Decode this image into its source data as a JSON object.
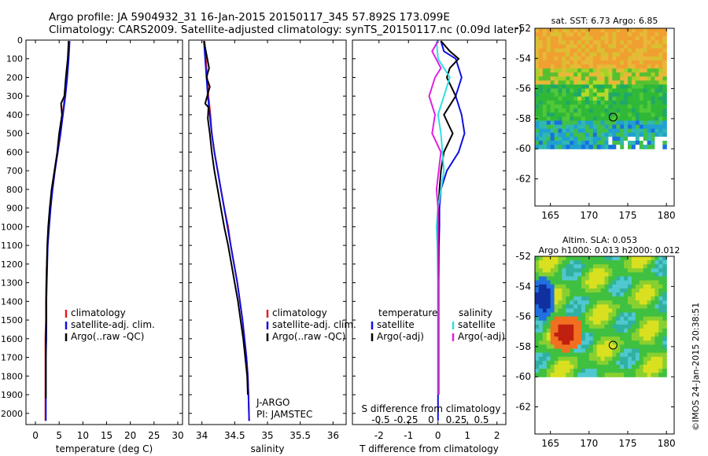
{
  "header": {
    "line1": "Argo profile: JA 5904932_31 16-Jan-2015 20150117_345 57.892S 173.099E",
    "line2": "Climatology: CARS2009. Satellite-adjusted climatology: synTS_20150117.nc (0.09d later)"
  },
  "colors": {
    "climatology": "#e02020",
    "satellite": "#1010e0",
    "argo": "#000000",
    "satellite_sal": "#30e0e0",
    "argo_sal": "#e020e0"
  },
  "chart_data": [
    {
      "type": "line",
      "name": "temperature-panel",
      "xlabel": "temperature (deg C)",
      "xlim": [
        -2,
        31
      ],
      "xticks": [
        0,
        5,
        10,
        15,
        20,
        25,
        30
      ],
      "ylim": [
        0,
        2060
      ],
      "yticks": [
        0,
        100,
        200,
        300,
        400,
        500,
        600,
        700,
        800,
        900,
        1000,
        1100,
        1200,
        1300,
        1400,
        1500,
        1600,
        1700,
        1800,
        1900,
        2000
      ],
      "legend": [
        "climatology",
        "satellite-adj. clim.",
        "Argo(..raw -QC)"
      ],
      "series": [
        {
          "name": "climatology",
          "x": [
            7.0,
            6.9,
            6.6,
            6.2,
            5.7,
            5.3,
            4.7,
            4.1,
            3.6,
            3.1,
            2.8,
            2.6,
            2.4,
            2.3,
            2.2,
            2.2,
            2.1,
            2.1,
            2.1,
            2.1,
            2.1
          ],
          "y": [
            5,
            100,
            200,
            300,
            400,
            500,
            600,
            700,
            800,
            900,
            1000,
            1100,
            1200,
            1300,
            1400,
            1500,
            1600,
            1700,
            1800,
            1900,
            2040
          ]
        },
        {
          "name": "satellite-adj. clim.",
          "x": [
            7.2,
            7.0,
            6.7,
            6.3,
            5.8,
            5.3,
            4.7,
            4.1,
            3.6,
            3.2,
            2.9,
            2.6,
            2.5,
            2.4,
            2.3,
            2.3,
            2.3,
            2.2,
            2.2,
            2.2,
            2.2
          ],
          "y": [
            5,
            100,
            200,
            300,
            400,
            500,
            600,
            700,
            800,
            900,
            1000,
            1100,
            1200,
            1300,
            1400,
            1500,
            1600,
            1700,
            1800,
            1900,
            2040
          ]
        },
        {
          "name": "Argo(..raw -QC)",
          "x": [
            7.0,
            6.8,
            6.4,
            6.1,
            5.4,
            5.6,
            5.0,
            4.6,
            4.0,
            3.4,
            3.0,
            2.7,
            2.5,
            2.4,
            2.3,
            2.3,
            2.3,
            2.2,
            2.2,
            2.2,
            2.2
          ],
          "y": [
            5,
            100,
            200,
            300,
            340,
            400,
            500,
            600,
            700,
            800,
            900,
            1000,
            1100,
            1200,
            1300,
            1400,
            1500,
            1600,
            1700,
            1800,
            1920
          ]
        }
      ]
    },
    {
      "type": "line",
      "name": "salinity-panel",
      "xlabel": "salinity",
      "xlim": [
        33.8,
        36.2
      ],
      "xticks": [
        34,
        34.5,
        35,
        35.5,
        36
      ],
      "ylim": [
        0,
        2060
      ],
      "legend": [
        "climatology",
        "satellite-adj. clim.",
        "Argo(..raw -QC)"
      ],
      "annotation": [
        "J-ARGO",
        "PI: JAMSTEC"
      ],
      "series": [
        {
          "name": "climatology",
          "x": [
            34.04,
            34.06,
            34.08,
            34.1,
            34.13,
            34.15,
            34.19,
            34.24,
            34.29,
            34.34,
            34.4,
            34.44,
            34.49,
            34.54,
            34.58,
            34.62,
            34.65,
            34.68,
            34.7,
            34.71,
            34.72
          ],
          "y": [
            5,
            100,
            200,
            300,
            400,
            500,
            600,
            700,
            800,
            900,
            1000,
            1100,
            1200,
            1300,
            1400,
            1500,
            1600,
            1700,
            1800,
            1900,
            2040
          ]
        },
        {
          "name": "satellite-adj. clim.",
          "x": [
            34.03,
            34.05,
            34.07,
            34.09,
            34.12,
            34.15,
            34.19,
            34.24,
            34.29,
            34.34,
            34.39,
            34.44,
            34.49,
            34.54,
            34.58,
            34.62,
            34.65,
            34.68,
            34.7,
            34.71,
            34.72
          ],
          "y": [
            5,
            100,
            200,
            300,
            400,
            500,
            600,
            700,
            800,
            900,
            1000,
            1100,
            1200,
            1300,
            1400,
            1500,
            1600,
            1700,
            1800,
            1900,
            2040
          ]
        },
        {
          "name": "Argo(..raw -QC)",
          "x": [
            34.03,
            34.06,
            34.11,
            34.07,
            34.12,
            34.05,
            34.1,
            34.09,
            34.12,
            34.15,
            34.19,
            34.24,
            34.29,
            34.34,
            34.4,
            34.45,
            34.5,
            34.55,
            34.59,
            34.63,
            34.66,
            34.69,
            34.7
          ],
          "y": [
            5,
            60,
            150,
            200,
            250,
            340,
            360,
            420,
            500,
            600,
            700,
            800,
            900,
            1000,
            1100,
            1200,
            1300,
            1400,
            1500,
            1600,
            1700,
            1800,
            1900
          ]
        }
      ]
    },
    {
      "type": "line",
      "name": "difference-panel",
      "xlabel": "T difference from climatology",
      "xlabel2": "S difference from climatology",
      "xlim": [
        -2.9,
        2.3
      ],
      "xticks": [
        -2,
        -1,
        0,
        1,
        2
      ],
      "sticks": [
        "-0.5",
        "-0.25",
        "0",
        "0.25",
        "0.5"
      ],
      "ylim": [
        0,
        2060
      ],
      "legend_temperature": {
        "title": "temperature",
        "items": [
          "satellite",
          "Argo(-adj)"
        ]
      },
      "legend_salinity": {
        "title": "salinity",
        "items": [
          "satellite",
          "Argo(-adj)"
        ]
      },
      "series": [
        {
          "name": "temperature satellite",
          "x": [
            0.1,
            0.2,
            0.6,
            0.8,
            0.6,
            0.8,
            0.9,
            0.7,
            0.3,
            0.1,
            0.05,
            0.05,
            0.03,
            0.02,
            0.02,
            0.02,
            0.02,
            0.0,
            0.0,
            0.0
          ],
          "y": [
            5,
            60,
            100,
            200,
            300,
            400,
            500,
            600,
            700,
            800,
            900,
            1000,
            1100,
            1300,
            1500,
            1700,
            1800,
            1900,
            2000,
            2040
          ]
        },
        {
          "name": "temperature Argo(-adj)",
          "x": [
            0.1,
            0.4,
            0.7,
            0.4,
            0.3,
            0.6,
            0.2,
            0.5,
            0.2,
            0.1,
            0.05,
            0.02,
            0.02,
            0.02,
            0.02
          ],
          "y": [
            5,
            60,
            100,
            150,
            200,
            300,
            400,
            500,
            600,
            700,
            800,
            900,
            1000,
            1300,
            1900
          ]
        },
        {
          "name": "salinity satellite",
          "x": [
            -0.05,
            0.0,
            0.4,
            0.2,
            0.0,
            0.1,
            0.2,
            0.0,
            -0.05,
            -0.02,
            0.0,
            0.0,
            0.0,
            0.0
          ],
          "y": [
            5,
            100,
            200,
            300,
            400,
            500,
            700,
            900,
            1000,
            1100,
            1300,
            1500,
            1700,
            1900
          ]
        },
        {
          "name": "salinity Argo(-adj)",
          "x": [
            0.0,
            -0.2,
            0.1,
            -0.1,
            -0.3,
            -0.1,
            -0.2,
            0.1,
            -0.05,
            0.0,
            0.0,
            0.0,
            0.0
          ],
          "y": [
            5,
            60,
            150,
            200,
            300,
            400,
            500,
            600,
            800,
            900,
            1100,
            1500,
            1900
          ]
        }
      ]
    },
    {
      "type": "heatmap",
      "name": "sst-map",
      "title": "sat. SST: 6.73 Argo: 6.85",
      "xticks": [
        165,
        170,
        175,
        180
      ],
      "yticks": [
        -52,
        -54,
        -56,
        -58,
        -60,
        -62
      ],
      "xlim": [
        163,
        181
      ],
      "ylim": [
        -63.8,
        -52
      ],
      "marker": [
        173.1,
        -57.9
      ]
    },
    {
      "type": "heatmap",
      "name": "sla-map",
      "title": [
        "Altim. SLA: 0.053",
        "Argo h1000: 0.013 h2000: 0.012"
      ],
      "xticks": [
        165,
        170,
        175,
        180
      ],
      "yticks": [
        -52,
        -54,
        -56,
        -58,
        -60,
        -62
      ],
      "xlim": [
        163,
        181
      ],
      "ylim": [
        -63.8,
        -52
      ],
      "marker": [
        173.1,
        -57.9
      ]
    }
  ],
  "credit": "©IMOS 24-Jan-2015 20:38:51"
}
